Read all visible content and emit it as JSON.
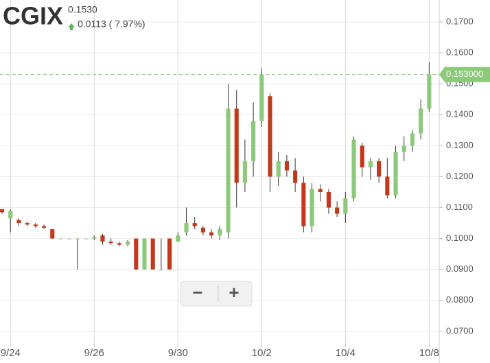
{
  "header": {
    "symbol": "CGIX",
    "price": "0.1530",
    "change": "0.0113 ( 7.97%)"
  },
  "zoom_controls": [
    "−",
    "+"
  ],
  "chart_data": {
    "type": "candlestick",
    "up_color": "#8cc97a",
    "down_color": "#c0391b",
    "wick_color": "#333333",
    "last": {
      "value": 0.153,
      "label": "0.153000"
    },
    "xlim": [
      -0.25,
      52.2
    ],
    "xticks": [
      {
        "value": 1,
        "label": "9/24"
      },
      {
        "value": 11,
        "label": "9/26"
      },
      {
        "value": 21,
        "label": "9/30"
      },
      {
        "value": 31,
        "label": "10/2"
      },
      {
        "value": 41,
        "label": "10/4"
      },
      {
        "value": 51,
        "label": "10/8"
      }
    ],
    "ylim": [
      0.0662,
      0.1771
    ],
    "yticks": [
      {
        "value": 0.17,
        "label": "0.1700"
      },
      {
        "value": 0.16,
        "label": "0.1600"
      },
      {
        "value": 0.15,
        "label": "0.1500"
      },
      {
        "value": 0.14,
        "label": "0.1400"
      },
      {
        "value": 0.13,
        "label": "0.1300"
      },
      {
        "value": 0.12,
        "label": "0.1200"
      },
      {
        "value": 0.11,
        "label": "0.1100"
      },
      {
        "value": 0.1,
        "label": "0.1000"
      },
      {
        "value": 0.09,
        "label": "0.0900"
      },
      {
        "value": 0.08,
        "label": "0.0800"
      },
      {
        "value": 0.07,
        "label": "0.0700"
      }
    ],
    "grid": true,
    "open": [
      0.1095,
      0.1065,
      0.106,
      0.105,
      0.1045,
      0.104,
      0.103,
      0.1,
      0.1,
      0.1,
      0.1,
      0.1,
      0.101,
      0.099,
      0.0985,
      0.098,
      0.1,
      0.09,
      0.1,
      0.09,
      0.1,
      0.099,
      0.102,
      0.105,
      0.1035,
      0.102,
      0.101,
      0.102,
      0.142,
      0.118,
      0.125,
      0.138,
      0.146,
      0.12,
      0.125,
      0.122,
      0.118,
      0.104,
      0.116,
      0.115,
      0.11,
      0.108,
      0.113,
      0.13,
      0.123,
      0.125,
      0.12,
      0.114,
      0.128,
      0.13,
      0.134,
      0.142
    ],
    "high": [
      0.1095,
      0.1095,
      0.1065,
      0.1055,
      0.105,
      0.1045,
      0.103,
      0.1,
      0.1,
      0.1,
      0.1,
      0.101,
      0.1015,
      0.1,
      0.099,
      0.0995,
      0.1,
      0.1,
      0.1,
      0.1,
      0.1,
      0.102,
      0.11,
      0.107,
      0.104,
      0.103,
      0.104,
      0.15,
      0.148,
      0.132,
      0.144,
      0.155,
      0.147,
      0.128,
      0.127,
      0.126,
      0.12,
      0.118,
      0.1175,
      0.116,
      0.112,
      0.115,
      0.133,
      0.131,
      0.126,
      0.126,
      0.126,
      0.13,
      0.133,
      0.135,
      0.145,
      0.157
    ],
    "low": [
      0.108,
      0.102,
      0.104,
      0.104,
      0.1035,
      0.103,
      0.1,
      0.1,
      0.1,
      0.09,
      0.1,
      0.0995,
      0.098,
      0.098,
      0.0975,
      0.0975,
      0.09,
      0.09,
      0.09,
      0.09,
      0.09,
      0.099,
      0.101,
      0.103,
      0.101,
      0.1,
      0.0995,
      0.1,
      0.11,
      0.115,
      0.12,
      0.136,
      0.115,
      0.117,
      0.12,
      0.115,
      0.102,
      0.102,
      0.112,
      0.108,
      0.107,
      0.105,
      0.112,
      0.12,
      0.119,
      0.118,
      0.113,
      0.113,
      0.125,
      0.128,
      0.132,
      0.141
    ],
    "close": [
      0.1085,
      0.109,
      0.105,
      0.1045,
      0.104,
      0.1035,
      0.1,
      0.1,
      0.1,
      0.1,
      0.1,
      0.1005,
      0.099,
      0.0985,
      0.098,
      0.099,
      0.09,
      0.1,
      0.09,
      0.09,
      0.09,
      0.101,
      0.105,
      0.104,
      0.102,
      0.101,
      0.103,
      0.142,
      0.118,
      0.125,
      0.138,
      0.153,
      0.12,
      0.125,
      0.122,
      0.118,
      0.104,
      0.116,
      0.115,
      0.11,
      0.108,
      0.113,
      0.132,
      0.123,
      0.125,
      0.12,
      0.114,
      0.128,
      0.13,
      0.134,
      0.142,
      0.153
    ]
  }
}
